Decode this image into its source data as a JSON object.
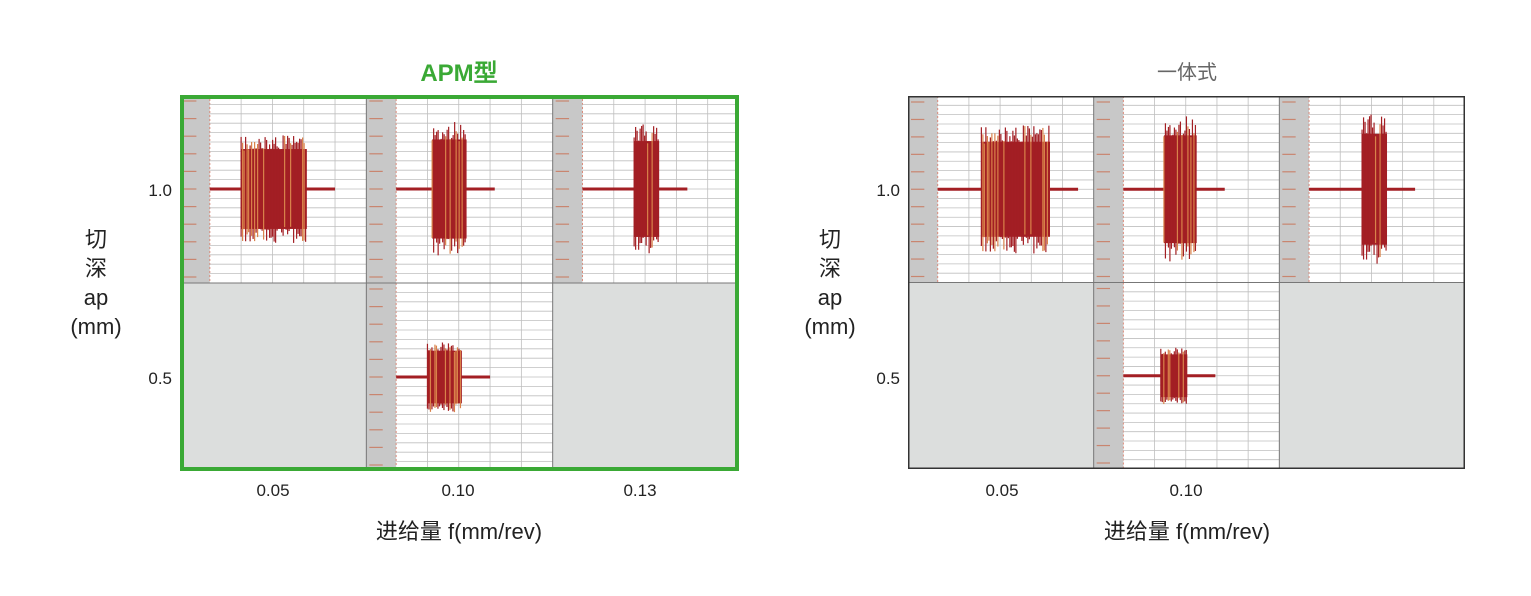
{
  "chart_data": [
    {
      "type": "waveform-grid",
      "title": "APM型",
      "title_color": "#3aa935",
      "frame_color": "#3aa935",
      "xlabel": "进给量 f(mm/rev)",
      "ylabel": [
        "切",
        "深",
        "ap",
        "(mm)"
      ],
      "x_ticks": [
        "0.05",
        "0.10",
        "0.13"
      ],
      "y_ticks": [
        "1.0",
        "0.5"
      ],
      "cells": [
        {
          "row": 0,
          "col": 0,
          "has_data": true,
          "burst_start": 0.2,
          "burst_end": 0.62,
          "amplitude": 0.5
        },
        {
          "row": 0,
          "col": 1,
          "has_data": true,
          "burst_start": 0.23,
          "burst_end": 0.45,
          "amplitude": 0.62
        },
        {
          "row": 0,
          "col": 2,
          "has_data": true,
          "burst_start": 0.33,
          "burst_end": 0.49,
          "amplitude": 0.6
        },
        {
          "row": 1,
          "col": 0,
          "has_data": false
        },
        {
          "row": 1,
          "col": 1,
          "has_data": true,
          "burst_start": 0.2,
          "burst_end": 0.42,
          "amplitude": 0.33
        },
        {
          "row": 1,
          "col": 2,
          "has_data": false
        }
      ]
    },
    {
      "type": "waveform-grid",
      "title": "一体式",
      "title_color": "#666666",
      "frame_color": "#333333",
      "xlabel": "进给量 f(mm/rev)",
      "ylabel": [
        "切",
        "深",
        "ap",
        "(mm)"
      ],
      "x_ticks": [
        "0.05",
        "0.10",
        ""
      ],
      "y_ticks": [
        "1.0",
        "0.5"
      ],
      "cells": [
        {
          "row": 0,
          "col": 0,
          "has_data": true,
          "burst_start": 0.28,
          "burst_end": 0.72,
          "amplitude": 0.6
        },
        {
          "row": 0,
          "col": 1,
          "has_data": true,
          "burst_start": 0.26,
          "burst_end": 0.47,
          "amplitude": 0.68
        },
        {
          "row": 0,
          "col": 2,
          "has_data": true,
          "burst_start": 0.34,
          "burst_end": 0.5,
          "amplitude": 0.7
        },
        {
          "row": 1,
          "col": 0,
          "has_data": false
        },
        {
          "row": 1,
          "col": 1,
          "has_data": true,
          "burst_start": 0.24,
          "burst_end": 0.41,
          "amplitude": 0.27
        },
        {
          "row": 1,
          "col": 2,
          "has_data": false
        }
      ]
    }
  ],
  "colors": {
    "wave": "#a31f24",
    "wave_edge": "#d9824a",
    "empty_cell": "#dcdedd",
    "grid": "#bfbfbf",
    "strip": "#c8c8c8"
  }
}
